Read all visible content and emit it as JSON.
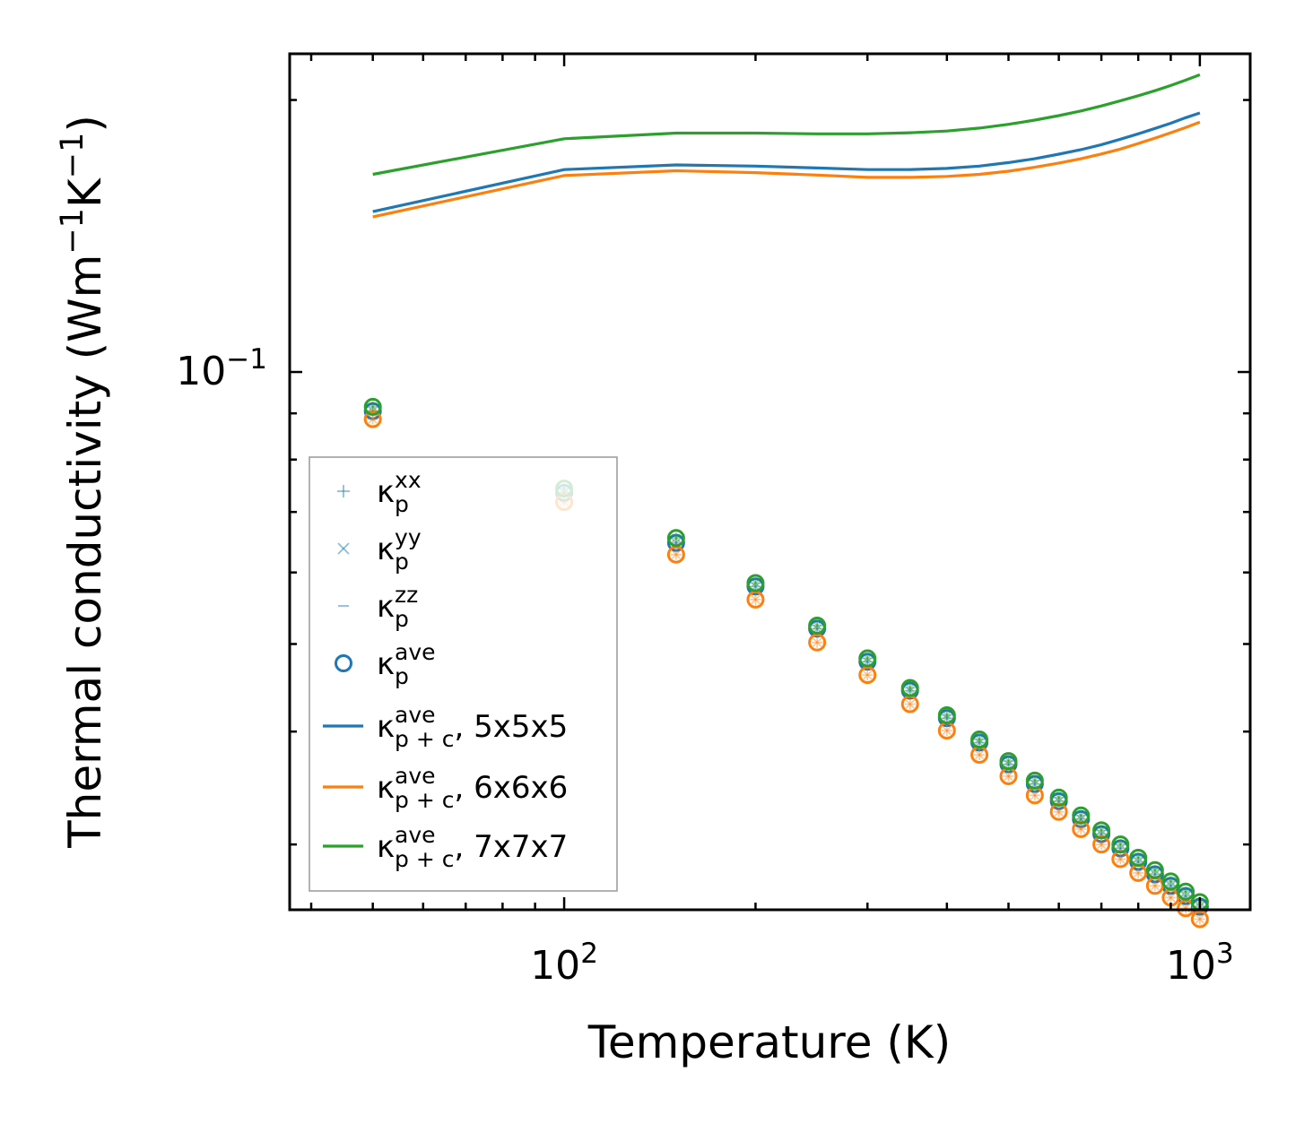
{
  "chart_data": {
    "type": "line+scatter",
    "xscale": "log",
    "yscale": "log",
    "xlabel": "Temperature (K)",
    "ylabel_parts": [
      "Thermal conductivity (Wm",
      "−1",
      "K",
      "−1",
      ")"
    ],
    "xlim": [
      37,
      1200
    ],
    "ylim": [
      0.0254,
      0.225
    ],
    "x_ticks": [
      {
        "value": 100,
        "base": "10",
        "exp": "2"
      },
      {
        "value": 1000,
        "base": "10",
        "exp": "3"
      }
    ],
    "y_ticks": [
      {
        "value": 0.1,
        "base": "10",
        "exp": "−1"
      }
    ],
    "legend": {
      "location": "lower-left",
      "entries": [
        {
          "kind": "plus",
          "base": "κ",
          "sub": "p",
          "sup": "xx",
          "suffix": ""
        },
        {
          "kind": "cross",
          "base": "κ",
          "sub": "p",
          "sup": "yy",
          "suffix": ""
        },
        {
          "kind": "dash",
          "base": "κ",
          "sub": "p",
          "sup": "zz",
          "suffix": ""
        },
        {
          "kind": "circle",
          "base": "κ",
          "sub": "p",
          "sup": "ave",
          "suffix": ""
        },
        {
          "kind": "line",
          "color": "#1f77b4",
          "base": "κ",
          "sub": "p + c",
          "sup": "ave",
          "suffix": ", 5x5x5"
        },
        {
          "kind": "line",
          "color": "#ff7f0e",
          "base": "κ",
          "sub": "p + c",
          "sup": "ave",
          "suffix": ", 6x6x6"
        },
        {
          "kind": "line",
          "color": "#2ca02c",
          "base": "κ",
          "sub": "p + c",
          "sup": "ave",
          "suffix": ", 7x7x7"
        }
      ]
    },
    "marker_x": [
      50,
      100,
      150,
      200,
      250,
      300,
      350,
      400,
      450,
      500,
      550,
      600,
      650,
      700,
      750,
      800,
      850,
      900,
      950,
      1000
    ],
    "series": [
      {
        "name": "5x5x5",
        "color": "#1f77b4",
        "kappa_p_ave": [
          0.0905,
          0.0735,
          0.0647,
          0.0579,
          0.052,
          0.0478,
          0.0444,
          0.0414,
          0.0389,
          0.0368,
          0.035,
          0.0335,
          0.032,
          0.0308,
          0.0297,
          0.0287,
          0.0278,
          0.027,
          0.0263,
          0.0256
        ],
        "kappa_pc_x": [
          50,
          100,
          150,
          200,
          250,
          300,
          350,
          400,
          450,
          500,
          550,
          600,
          650,
          700,
          750,
          800,
          850,
          900,
          950,
          1000
        ],
        "kappa_pc_ave": [
          0.1505,
          0.1675,
          0.1695,
          0.169,
          0.1682,
          0.1675,
          0.1675,
          0.168,
          0.169,
          0.1705,
          0.1722,
          0.1742,
          0.1762,
          0.1785,
          0.181,
          0.1835,
          0.186,
          0.1885,
          0.1912,
          0.1935
        ]
      },
      {
        "name": "6x6x6",
        "color": "#ff7f0e",
        "kappa_p_ave": [
          0.0887,
          0.0718,
          0.0628,
          0.056,
          0.0502,
          0.0462,
          0.0429,
          0.0401,
          0.0377,
          0.0357,
          0.034,
          0.0326,
          0.0312,
          0.03,
          0.0289,
          0.0279,
          0.027,
          0.0262,
          0.0255,
          0.0248
        ],
        "kappa_pc_x": [
          50,
          100,
          150,
          200,
          250,
          300,
          350,
          400,
          450,
          500,
          550,
          600,
          650,
          700,
          750,
          800,
          850,
          900,
          950,
          1000
        ],
        "kappa_pc_ave": [
          0.1485,
          0.165,
          0.167,
          0.1662,
          0.1652,
          0.1642,
          0.1642,
          0.1646,
          0.1655,
          0.1668,
          0.1685,
          0.1703,
          0.1722,
          0.1743,
          0.1765,
          0.179,
          0.1815,
          0.184,
          0.1865,
          0.189
        ]
      },
      {
        "name": "7x7x7",
        "color": "#2ca02c",
        "kappa_p_ave": [
          0.0915,
          0.0743,
          0.0655,
          0.0584,
          0.0524,
          0.0482,
          0.0447,
          0.0417,
          0.0392,
          0.0371,
          0.0353,
          0.0338,
          0.0323,
          0.0311,
          0.03,
          0.029,
          0.0281,
          0.0273,
          0.0266,
          0.0259
        ],
        "kappa_pc_x": [
          50,
          100,
          150,
          200,
          250,
          300,
          350,
          400,
          450,
          500,
          550,
          600,
          650,
          700,
          750,
          800,
          850,
          900,
          950,
          1000
        ],
        "kappa_pc_ave": [
          0.1655,
          0.1812,
          0.1838,
          0.1838,
          0.1835,
          0.1835,
          0.184,
          0.1848,
          0.1862,
          0.188,
          0.19,
          0.1922,
          0.1945,
          0.197,
          0.1996,
          0.2022,
          0.2048,
          0.2075,
          0.2104,
          0.2133
        ]
      }
    ]
  }
}
